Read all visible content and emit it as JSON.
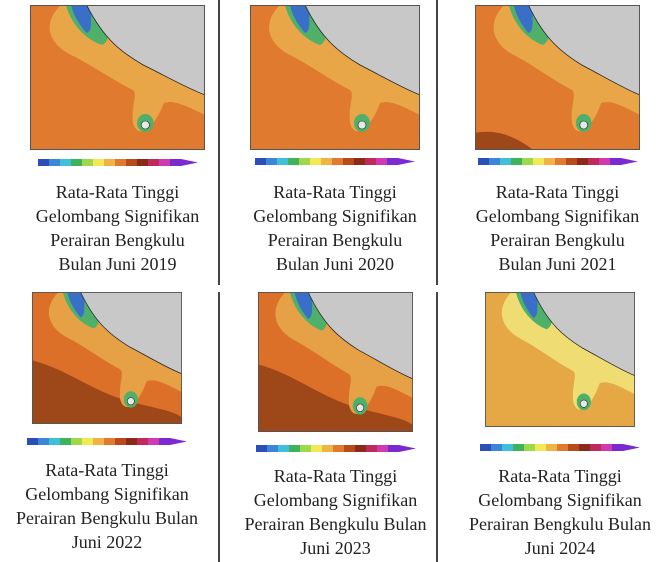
{
  "panels": [
    {
      "caption": [
        "Rata-Rata Tinggi",
        "Gelombang Signifikan",
        "Perairan Bengkulu",
        "Bulan Juni 2019"
      ]
    },
    {
      "caption": [
        "Rata-Rata Tinggi",
        "Gelombang Signifikan",
        "Perairan Bengkulu",
        "Bulan Juni 2020"
      ]
    },
    {
      "caption": [
        "Rata-Rata Tinggi",
        "Gelombang Signifikan",
        "Perairan Bengkulu",
        "Bulan Juni 2021"
      ]
    },
    {
      "caption": [
        "Rata-Rata Tinggi",
        "Gelombang Signifikan",
        "Perairan Bengkulu Bulan",
        "Juni 2022"
      ]
    },
    {
      "caption": [
        "Rata-Rata Tinggi",
        "Gelombang Signifikan",
        "Perairan Bengkulu Bulan",
        "Juni 2023"
      ]
    },
    {
      "caption": [
        "Rata-Rata Tinggi",
        "Gelombang Signifikan",
        "Perairan Bengkulu Bulan",
        "Juni 2024"
      ]
    }
  ]
}
